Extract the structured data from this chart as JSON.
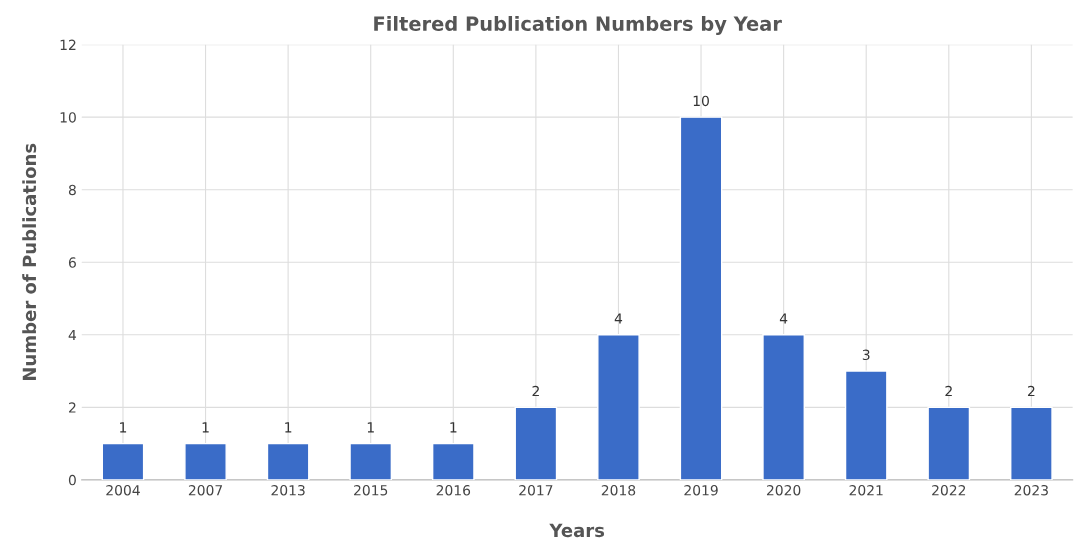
{
  "chart_data": {
    "type": "bar",
    "title": "Filtered Publication Numbers by Year",
    "xlabel": "Years",
    "ylabel": "Number of Publications",
    "categories": [
      "2004",
      "2007",
      "2013",
      "2015",
      "2016",
      "2017",
      "2018",
      "2019",
      "2020",
      "2021",
      "2022",
      "2023"
    ],
    "values": [
      1,
      1,
      1,
      1,
      1,
      2,
      4,
      10,
      4,
      3,
      2,
      2
    ],
    "color": "#3a6cc8",
    "ylim": [
      0,
      12
    ],
    "yticks": [
      0,
      2,
      4,
      6,
      8,
      10,
      12
    ],
    "grid": true,
    "data_labels": true
  }
}
